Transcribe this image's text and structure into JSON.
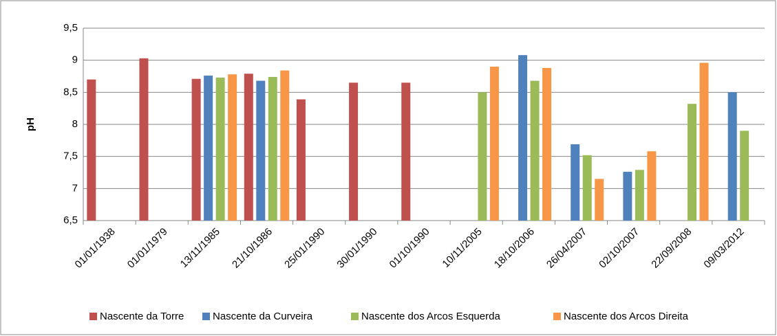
{
  "chart_data": {
    "type": "bar",
    "y_label": "pH",
    "categories": [
      "01/01/1938",
      "01/01/1979",
      "13/11/1985",
      "21/10/1986",
      "25/01/1990",
      "30/01/1990",
      "01/10/1990",
      "10/11/2005",
      "18/10/2006",
      "26/04/2007",
      "02/10/2007",
      "22/09/2008",
      "09/03/2012"
    ],
    "series": [
      {
        "name": "Nascente da Torre",
        "color": "#c0504d",
        "values": [
          8.7,
          9.03,
          8.71,
          8.79,
          8.39,
          8.65,
          8.65,
          null,
          null,
          null,
          null,
          null,
          null
        ]
      },
      {
        "name": "Nascente da Curveira",
        "color": "#4f81bd",
        "values": [
          null,
          null,
          8.76,
          8.68,
          null,
          null,
          null,
          null,
          9.08,
          7.69,
          7.26,
          null,
          8.5
        ]
      },
      {
        "name": "Nascente dos Arcos Esquerda",
        "color": "#9bbb59",
        "values": [
          null,
          null,
          8.73,
          8.74,
          null,
          null,
          null,
          8.5,
          8.68,
          7.52,
          7.29,
          8.32,
          7.9
        ]
      },
      {
        "name": "Nascente dos Arcos Direita",
        "color": "#f79646",
        "values": [
          null,
          null,
          8.78,
          8.84,
          null,
          null,
          null,
          8.9,
          8.88,
          7.15,
          7.58,
          8.96,
          null
        ]
      }
    ],
    "ylim": [
      6.5,
      9.5
    ],
    "yticks": [
      {
        "value": 6.5,
        "label": "6,5"
      },
      7,
      {
        "value": 7.5,
        "label": "7,5"
      },
      8,
      {
        "value": 8.5,
        "label": "8,5"
      },
      9,
      {
        "value": 9.5,
        "label": "9,5"
      }
    ],
    "grid": true,
    "legend": "bottom"
  }
}
